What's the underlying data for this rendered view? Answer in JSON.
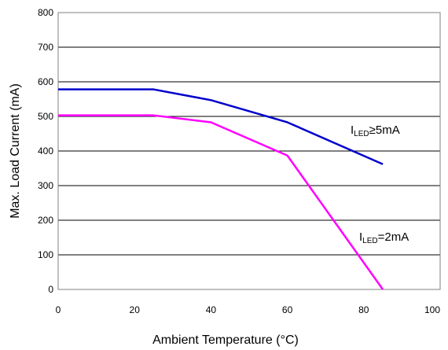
{
  "chart_data": {
    "type": "line",
    "title": "",
    "xlabel": "Ambient Temperature (°C)",
    "ylabel": "Max. Load Current (mA)",
    "xlim": [
      0,
      100
    ],
    "ylim": [
      0,
      800
    ],
    "x_ticks": [
      "0",
      "20",
      "40",
      "60",
      "80",
      "100"
    ],
    "y_ticks": [
      "0",
      "100",
      "200",
      "300",
      "400",
      "500",
      "600",
      "700",
      "800"
    ],
    "grid": "horizontal",
    "legend": "none",
    "series": [
      {
        "label_main": "I",
        "label_sub": "LED",
        "label_rest": "≥5mA",
        "color": "#0000cc",
        "x": [
          0,
          25,
          40,
          60,
          85
        ],
        "y": [
          578,
          578,
          547,
          483,
          362
        ]
      },
      {
        "label_main": "I",
        "label_sub": "LED",
        "label_rest": "=2mA",
        "color": "#ff00ff",
        "x": [
          0,
          25,
          40,
          60,
          85
        ],
        "y": [
          503,
          503,
          483,
          387,
          0
        ]
      }
    ]
  }
}
